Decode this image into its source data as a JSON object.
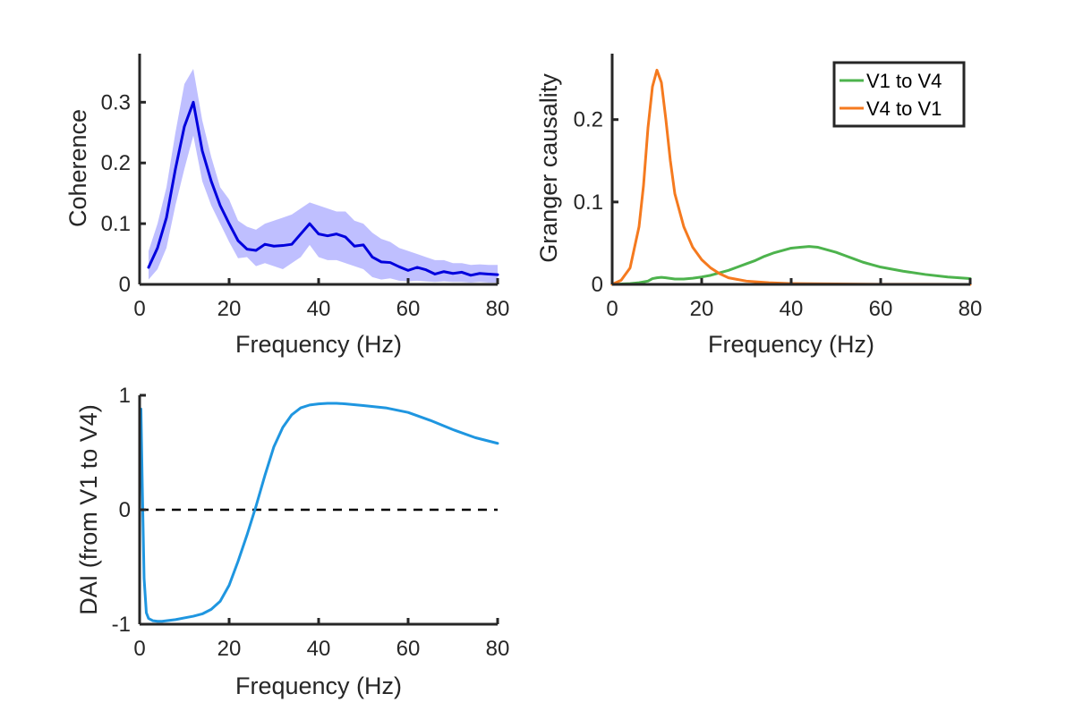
{
  "chart_data": [
    {
      "type": "line",
      "xlabel": "Frequency (Hz)",
      "ylabel": "Coherence",
      "xlim": [
        0,
        80
      ],
      "ylim": [
        0,
        0.38
      ],
      "xticks": [
        0,
        20,
        40,
        60,
        80
      ],
      "xtick_labels": [
        "0",
        "20",
        "40",
        "60",
        "80"
      ],
      "yticks": [
        0,
        0.1,
        0.2,
        0.3
      ],
      "ytick_labels": [
        "0",
        "0.1",
        "0.2",
        "0.3"
      ],
      "grid": false,
      "series": [
        {
          "color": "#0000dd",
          "band_color": "#bfbfff",
          "x": [
            2,
            4,
            6,
            8,
            10,
            12,
            14,
            16,
            18,
            20,
            22,
            24,
            26,
            28,
            30,
            32,
            34,
            36,
            38,
            40,
            42,
            44,
            46,
            48,
            50,
            52,
            54,
            56,
            58,
            60,
            62,
            64,
            66,
            68,
            70,
            72,
            74,
            76,
            78,
            80
          ],
          "y": [
            0.028,
            0.06,
            0.11,
            0.19,
            0.26,
            0.3,
            0.22,
            0.17,
            0.13,
            0.1,
            0.072,
            0.058,
            0.056,
            0.066,
            0.063,
            0.064,
            0.066,
            0.083,
            0.1,
            0.083,
            0.08,
            0.083,
            0.078,
            0.063,
            0.065,
            0.045,
            0.037,
            0.036,
            0.029,
            0.023,
            0.028,
            0.024,
            0.017,
            0.021,
            0.018,
            0.02,
            0.015,
            0.018,
            0.017,
            0.016
          ],
          "y_upper": [
            0.055,
            0.1,
            0.16,
            0.25,
            0.33,
            0.355,
            0.27,
            0.21,
            0.16,
            0.14,
            0.105,
            0.095,
            0.09,
            0.1,
            0.105,
            0.11,
            0.115,
            0.125,
            0.135,
            0.13,
            0.125,
            0.12,
            0.12,
            0.105,
            0.1,
            0.085,
            0.075,
            0.07,
            0.06,
            0.055,
            0.05,
            0.045,
            0.04,
            0.04,
            0.035,
            0.035,
            0.032,
            0.033,
            0.032,
            0.032
          ],
          "y_lower": [
            0.008,
            0.025,
            0.06,
            0.13,
            0.19,
            0.245,
            0.17,
            0.13,
            0.1,
            0.07,
            0.043,
            0.045,
            0.03,
            0.035,
            0.03,
            0.025,
            0.035,
            0.045,
            0.065,
            0.045,
            0.04,
            0.04,
            0.035,
            0.03,
            0.025,
            0.012,
            0.008,
            0.01,
            0.006,
            0.005,
            0.006,
            0.005,
            0.004,
            0.005,
            0.004,
            0.004,
            0.003,
            0.004,
            0.003,
            0.003
          ]
        }
      ]
    },
    {
      "type": "line",
      "xlabel": "Frequency (Hz)",
      "ylabel": "Granger causality",
      "xlim": [
        0,
        80
      ],
      "ylim": [
        0,
        0.28
      ],
      "xticks": [
        0,
        20,
        40,
        60,
        80
      ],
      "xtick_labels": [
        "0",
        "20",
        "40",
        "60",
        "80"
      ],
      "yticks": [
        0,
        0.1,
        0.2
      ],
      "ytick_labels": [
        "0",
        "0.1",
        "0.2"
      ],
      "grid": false,
      "legend_position": "top-right",
      "series": [
        {
          "name": "V1 to V4",
          "color": "#4db34d",
          "x": [
            0,
            4,
            6,
            8,
            9,
            10,
            11,
            12,
            14,
            16,
            18,
            20,
            22,
            24,
            26,
            28,
            30,
            32,
            34,
            36,
            38,
            40,
            42,
            44,
            46,
            48,
            50,
            52,
            54,
            56,
            58,
            60,
            65,
            70,
            75,
            80
          ],
          "y": [
            0,
            0.001,
            0.002,
            0.004,
            0.007,
            0.008,
            0.0085,
            0.008,
            0.0065,
            0.0065,
            0.0075,
            0.009,
            0.011,
            0.014,
            0.017,
            0.021,
            0.025,
            0.029,
            0.034,
            0.038,
            0.041,
            0.044,
            0.045,
            0.046,
            0.045,
            0.042,
            0.039,
            0.035,
            0.031,
            0.027,
            0.024,
            0.021,
            0.016,
            0.012,
            0.009,
            0.007
          ]
        },
        {
          "name": "V4 to V1",
          "color": "#f57a1f",
          "x": [
            0,
            2,
            4,
            6,
            7,
            8,
            9,
            10,
            11,
            12,
            13,
            14,
            16,
            18,
            20,
            22,
            24,
            26,
            28,
            30,
            35,
            40,
            50,
            60,
            70,
            80
          ],
          "y": [
            0,
            0.005,
            0.02,
            0.07,
            0.12,
            0.19,
            0.24,
            0.26,
            0.245,
            0.2,
            0.15,
            0.11,
            0.07,
            0.045,
            0.03,
            0.02,
            0.013,
            0.008,
            0.006,
            0.004,
            0.002,
            0.001,
            0.0005,
            0.0002,
            0.0001,
            0
          ]
        }
      ]
    },
    {
      "type": "line",
      "xlabel": "Frequency (Hz)",
      "ylabel": "DAI (from V1 to V4)",
      "xlim": [
        0,
        80
      ],
      "ylim": [
        -1,
        1
      ],
      "xticks": [
        0,
        20,
        40,
        60,
        80
      ],
      "xtick_labels": [
        "0",
        "20",
        "40",
        "60",
        "80"
      ],
      "yticks": [
        -1,
        0,
        1
      ],
      "ytick_labels": [
        "-1",
        "0",
        "1"
      ],
      "grid": false,
      "reference_line": {
        "y": 0,
        "style": "dashed",
        "color": "#000000"
      },
      "series": [
        {
          "color": "#1f96e0",
          "x": [
            0.3,
            0.6,
            1,
            1.5,
            2,
            3,
            4,
            5,
            6,
            8,
            10,
            12,
            14,
            16,
            18,
            20,
            22,
            24,
            26,
            28,
            30,
            32,
            34,
            36,
            38,
            40,
            42,
            44,
            46,
            50,
            55,
            60,
            65,
            70,
            75,
            80
          ],
          "y": [
            0.88,
            0.2,
            -0.6,
            -0.9,
            -0.95,
            -0.97,
            -0.975,
            -0.975,
            -0.97,
            -0.96,
            -0.945,
            -0.93,
            -0.91,
            -0.87,
            -0.8,
            -0.66,
            -0.45,
            -0.22,
            0.03,
            0.3,
            0.55,
            0.72,
            0.83,
            0.89,
            0.915,
            0.925,
            0.93,
            0.93,
            0.925,
            0.91,
            0.89,
            0.85,
            0.78,
            0.7,
            0.63,
            0.58
          ]
        }
      ]
    }
  ]
}
